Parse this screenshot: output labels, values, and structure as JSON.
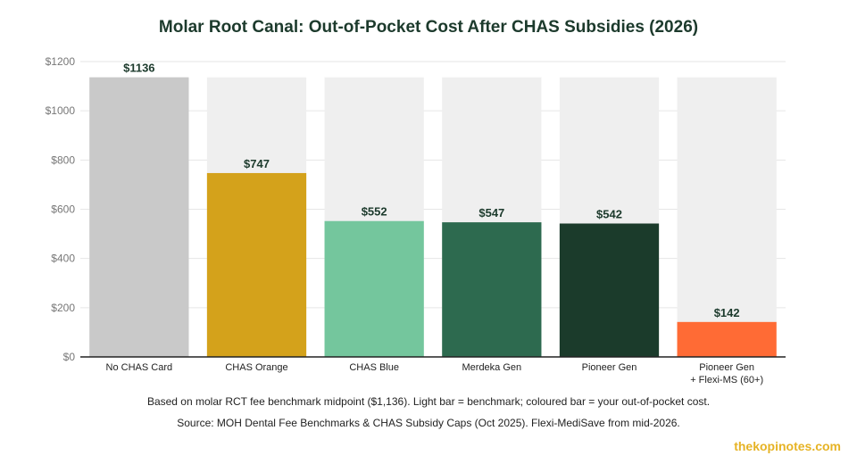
{
  "chart_data": {
    "type": "bar",
    "title": "Molar Root Canal: Out-of-Pocket Cost After CHAS Subsidies (2026)",
    "xlabel": "",
    "ylabel": "",
    "ylim": [
      0,
      1200
    ],
    "yticks": [
      "$0",
      "$200",
      "$400",
      "$600",
      "$800",
      "$1000",
      "$1200"
    ],
    "ytick_values": [
      0,
      200,
      400,
      600,
      800,
      1000,
      1200
    ],
    "grid": true,
    "benchmark": 1136,
    "categories": [
      [
        "No CHAS Card"
      ],
      [
        "CHAS Orange"
      ],
      [
        "CHAS Blue"
      ],
      [
        "Merdeka Gen"
      ],
      [
        "Pioneer Gen"
      ],
      [
        "Pioneer Gen",
        "+ Flexi-MS (60+)"
      ]
    ],
    "values": [
      1136,
      747,
      552,
      547,
      542,
      142
    ],
    "value_labels": [
      "$1136",
      "$747",
      "$552",
      "$547",
      "$542",
      "$142"
    ],
    "colors": [
      "#c9c9c9",
      "#d4a21b",
      "#74c69d",
      "#2d6a4f",
      "#1b3b2b",
      "#ff6b35"
    ],
    "benchmark_color": "#efefef"
  },
  "notes": {
    "line1": "Based on molar RCT fee benchmark midpoint ($1,136). Light bar = benchmark; coloured bar = your out-of-pocket cost.",
    "line2": "Source: MOH Dental Fee Benchmarks & CHAS Subsidy Caps (Oct 2025). Flexi-MediSave from mid-2026."
  },
  "brand": "thekopinotes.com"
}
